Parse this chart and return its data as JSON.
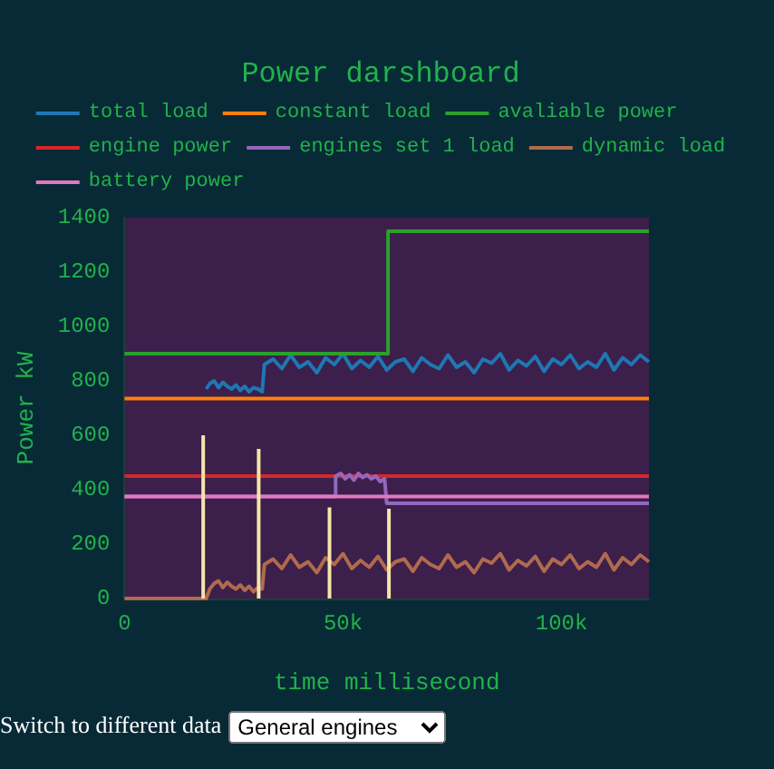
{
  "chart_data": {
    "type": "line",
    "title": "Power darshboard",
    "xlabel": "time millisecond",
    "ylabel": "Power kW",
    "xlim": [
      0,
      120000
    ],
    "xticks": [
      0,
      {
        "value": 50000,
        "label": "50k"
      },
      {
        "value": 100000,
        "label": "100k"
      }
    ],
    "ylim": [
      0,
      1400
    ],
    "yticks": [
      0,
      200,
      400,
      600,
      800,
      1000,
      1200,
      1400
    ],
    "grid": false,
    "legend": "top",
    "marker": "none",
    "line_style": "solid",
    "annotations": [
      "Switch to different data",
      "General engines"
    ],
    "series": [
      {
        "name": "total load",
        "color": "#1f77b4",
        "x": [
          18700,
          19500,
          20500,
          21500,
          22500,
          23500,
          24500,
          25500,
          26500,
          27500,
          28500,
          29500,
          30500,
          31500,
          32000,
          34000,
          36000,
          38000,
          40000,
          42000,
          44000,
          46000,
          48000,
          50000,
          52000,
          54000,
          56000,
          58000,
          60000,
          62000,
          64000,
          66000,
          68000,
          70000,
          72000,
          74000,
          76000,
          78000,
          80000,
          82000,
          84000,
          86000,
          88000,
          90000,
          92000,
          94000,
          96000,
          98000,
          100000,
          102000,
          104000,
          106000,
          108000,
          110000,
          112000,
          114000,
          116000,
          118000,
          120000
        ],
        "values": [
          770,
          790,
          800,
          775,
          795,
          780,
          770,
          785,
          765,
          780,
          760,
          775,
          770,
          760,
          860,
          880,
          845,
          895,
          850,
          870,
          830,
          885,
          860,
          900,
          845,
          875,
          850,
          890,
          840,
          870,
          880,
          835,
          885,
          860,
          845,
          895,
          850,
          870,
          830,
          880,
          865,
          900,
          840,
          875,
          855,
          890,
          835,
          880,
          860,
          895,
          845,
          870,
          850,
          900,
          840,
          885,
          860,
          895,
          870
        ]
      },
      {
        "name": "constant load",
        "color": "#ff7f0e",
        "x": [
          0,
          120000
        ],
        "values": [
          735,
          735
        ]
      },
      {
        "name": "avaliable power",
        "color": "#2ca02c",
        "x": [
          0,
          60300,
          60300,
          120000
        ],
        "values": [
          900,
          900,
          1350,
          1350
        ]
      },
      {
        "name": "engine power",
        "color": "#d62728",
        "x": [
          0,
          120000
        ],
        "values": [
          450,
          450
        ]
      },
      {
        "name": "engines set 1 load",
        "color": "#9467bd",
        "x": [
          0,
          48300,
          48300,
          49500,
          50500,
          51500,
          52500,
          53500,
          54500,
          55500,
          56500,
          57500,
          58500,
          59500,
          60000,
          120000
        ],
        "values": [
          375,
          375,
          450,
          460,
          440,
          455,
          435,
          460,
          445,
          455,
          440,
          450,
          430,
          440,
          350,
          350
        ]
      },
      {
        "name": "dynamic load",
        "color": "#b06a4e",
        "x": [
          0,
          18700,
          19500,
          20500,
          21500,
          22500,
          23500,
          24500,
          25500,
          26500,
          27500,
          28500,
          29500,
          30500,
          31500,
          32000,
          34000,
          36000,
          38000,
          40000,
          42000,
          44000,
          46000,
          48000,
          50000,
          52000,
          54000,
          56000,
          58000,
          60000,
          62000,
          64000,
          66000,
          68000,
          70000,
          72000,
          74000,
          76000,
          78000,
          80000,
          82000,
          84000,
          86000,
          88000,
          90000,
          92000,
          94000,
          96000,
          98000,
          100000,
          102000,
          104000,
          106000,
          108000,
          110000,
          112000,
          114000,
          116000,
          118000,
          120000
        ],
        "values": [
          0,
          0,
          35,
          55,
          65,
          40,
          60,
          45,
          35,
          50,
          30,
          45,
          25,
          40,
          35,
          125,
          145,
          110,
          160,
          115,
          135,
          95,
          150,
          125,
          165,
          110,
          140,
          115,
          155,
          105,
          135,
          145,
          100,
          150,
          125,
          110,
          160,
          115,
          135,
          95,
          145,
          130,
          165,
          105,
          140,
          120,
          155,
          100,
          145,
          125,
          160,
          110,
          135,
          115,
          165,
          105,
          150,
          125,
          160,
          135
        ]
      },
      {
        "name": "battery power",
        "color": "#e377c2",
        "x": [
          0,
          120000
        ],
        "values": [
          375,
          375
        ]
      },
      {
        "color": "#f5e6a8",
        "x": [
          18000,
          18000
        ],
        "values": [
          0,
          600
        ]
      },
      {
        "color": "#f5e6a8",
        "x": [
          30700,
          30700
        ],
        "values": [
          0,
          550
        ]
      },
      {
        "color": "#f5e6a8",
        "x": [
          46900,
          46900
        ],
        "values": [
          0,
          335
        ]
      },
      {
        "color": "#f5e6a8",
        "x": [
          60500,
          60500
        ],
        "values": [
          0,
          330
        ]
      }
    ]
  }
}
